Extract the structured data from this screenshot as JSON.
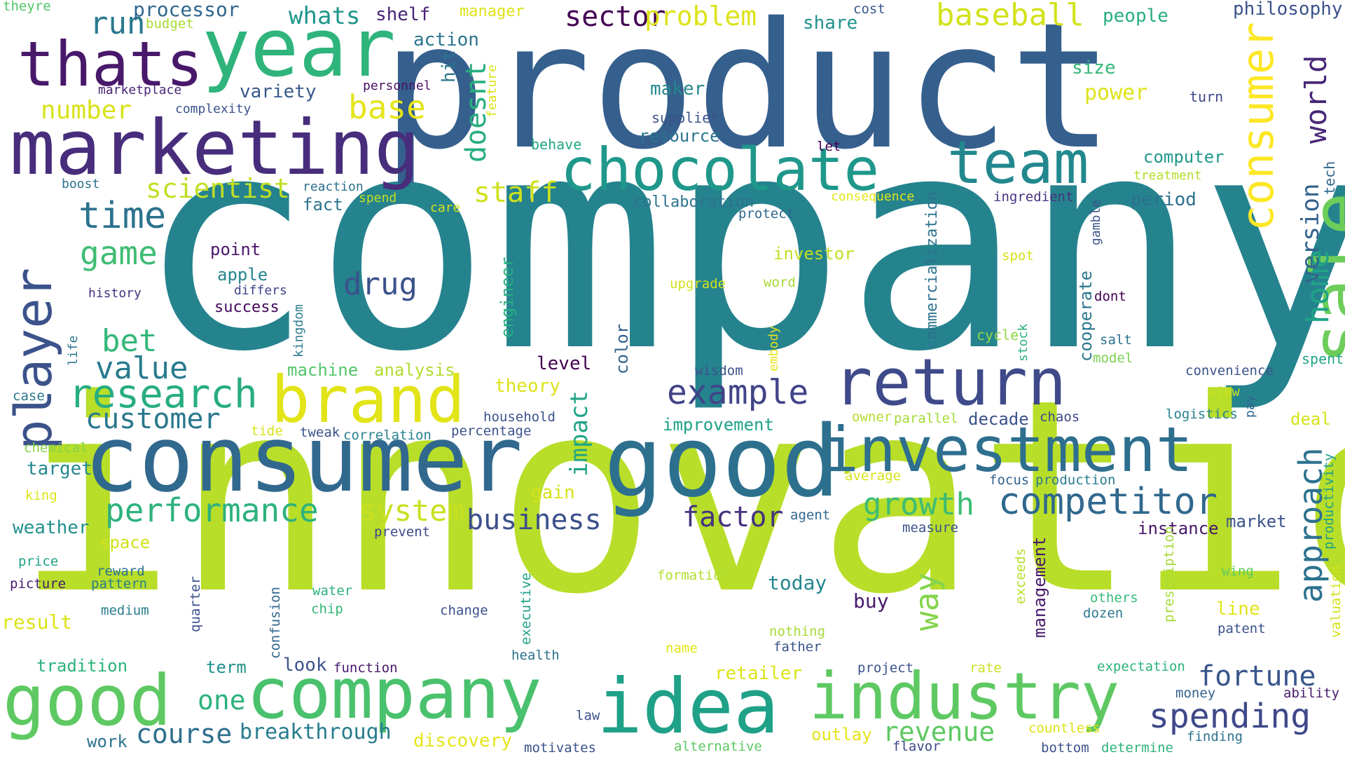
{
  "words": [
    {
      "text": "company",
      "color": "#25838e"
    },
    {
      "text": "innovation",
      "color": "#b8de29"
    },
    {
      "text": "product",
      "color": "#355f8d"
    },
    {
      "text": "consumer",
      "color": "#31688e"
    },
    {
      "text": "good",
      "color": "#2d708e"
    },
    {
      "text": "marketing",
      "color": "#472d7b"
    },
    {
      "text": "year",
      "color": "#2fb47c"
    },
    {
      "text": "thats",
      "color": "#48186a"
    },
    {
      "text": "company",
      "color": "#4ac16d"
    },
    {
      "text": "good",
      "color": "#5ec962"
    },
    {
      "text": "idea",
      "color": "#1fa187"
    },
    {
      "text": "industry",
      "color": "#5ec962"
    },
    {
      "text": "brand",
      "color": "#e2e418"
    },
    {
      "text": "return",
      "color": "#3e4a89"
    },
    {
      "text": "investment",
      "color": "#2e6e8e"
    },
    {
      "text": "chocolate",
      "color": "#1f988b"
    },
    {
      "text": "team",
      "color": "#23888e"
    },
    {
      "text": "sale",
      "color": "#6ccd5a"
    },
    {
      "text": "consumer",
      "color": "#fde725"
    },
    {
      "text": "player",
      "color": "#3b528b"
    },
    {
      "text": "research",
      "color": "#27ad81"
    },
    {
      "text": "competitor",
      "color": "#30688e"
    },
    {
      "text": "performance",
      "color": "#2db27d"
    },
    {
      "text": "customer",
      "color": "#2a788e"
    },
    {
      "text": "time",
      "color": "#2c728e"
    },
    {
      "text": "game",
      "color": "#3fbc73"
    },
    {
      "text": "value",
      "color": "#297b8e"
    },
    {
      "text": "bet",
      "color": "#35b779"
    },
    {
      "text": "example",
      "color": "#414487"
    },
    {
      "text": "spending",
      "color": "#3e4989"
    },
    {
      "text": "fortune",
      "color": "#39568c"
    },
    {
      "text": "growth",
      "color": "#3dbc74"
    },
    {
      "text": "business",
      "color": "#3c508b"
    },
    {
      "text": "factor",
      "color": "#46337f"
    },
    {
      "text": "system",
      "color": "#c8e020"
    },
    {
      "text": "approach",
      "color": "#2c728e"
    },
    {
      "text": "way",
      "color": "#84d44b"
    },
    {
      "text": "home",
      "color": "#20a386"
    },
    {
      "text": "world",
      "color": "#482878"
    },
    {
      "text": "version",
      "color": "#33638d"
    },
    {
      "text": "scientist",
      "color": "#c0df25"
    },
    {
      "text": "staff",
      "color": "#d0e11c"
    },
    {
      "text": "drug",
      "color": "#3b528b"
    },
    {
      "text": "number",
      "color": "#d8e219"
    },
    {
      "text": "base",
      "color": "#e5e419"
    },
    {
      "text": "run",
      "color": "#29798e"
    },
    {
      "text": "processor",
      "color": "#31678e"
    },
    {
      "text": "whats",
      "color": "#1f968b"
    },
    {
      "text": "shelf",
      "color": "#482475"
    },
    {
      "text": "sector",
      "color": "#440154"
    },
    {
      "text": "problem",
      "color": "#dde318"
    },
    {
      "text": "baseball",
      "color": "#d2e21b"
    },
    {
      "text": "people",
      "color": "#26ad81"
    },
    {
      "text": "philosophy",
      "color": "#3b528b"
    },
    {
      "text": "doesnt",
      "color": "#28ae80"
    },
    {
      "text": "revenue",
      "color": "#5ec962"
    },
    {
      "text": "course",
      "color": "#2e6e8e"
    },
    {
      "text": "breakthrough",
      "color": "#287d8e"
    },
    {
      "text": "one",
      "color": "#2db27d"
    },
    {
      "text": "impact",
      "color": "#20a486"
    },
    {
      "text": "today",
      "color": "#25858e"
    },
    {
      "text": "management",
      "color": "#481a6c"
    },
    {
      "text": "target",
      "color": "#23898e"
    },
    {
      "text": "gain",
      "color": "#d8e219"
    },
    {
      "text": "action",
      "color": "#2b758e"
    },
    {
      "text": "budget",
      "color": "#a8db34"
    },
    {
      "text": "theyre",
      "color": "#52c569"
    },
    {
      "text": "marketplace",
      "color": "#482677"
    },
    {
      "text": "complexity",
      "color": "#3b528b"
    },
    {
      "text": "variety",
      "color": "#38588c"
    },
    {
      "text": "personnel",
      "color": "#471164"
    },
    {
      "text": "hit",
      "color": "#2a768e"
    },
    {
      "text": "feature",
      "color": "#dde318"
    },
    {
      "text": "maker",
      "color": "#24878e"
    },
    {
      "text": "supplier",
      "color": "#3b528b"
    },
    {
      "text": "resource",
      "color": "#2b748e"
    },
    {
      "text": "behave",
      "color": "#22a785"
    },
    {
      "text": "manager",
      "color": "#dde318"
    },
    {
      "text": "share",
      "color": "#21918c"
    },
    {
      "text": "cost",
      "color": "#38588c"
    },
    {
      "text": "size",
      "color": "#35b779"
    },
    {
      "text": "power",
      "color": "#dde318"
    },
    {
      "text": "turn",
      "color": "#3e4989"
    },
    {
      "text": "computer",
      "color": "#1f988b"
    },
    {
      "text": "treatment",
      "color": "#b5de2b"
    },
    {
      "text": "tech",
      "color": "#31678e"
    },
    {
      "text": "period",
      "color": "#2d708e"
    },
    {
      "text": "ingredient",
      "color": "#46327e"
    },
    {
      "text": "gamble",
      "color": "#3b528b"
    },
    {
      "text": "collaboration",
      "color": "#2c728e"
    },
    {
      "text": "protect",
      "color": "#31678e"
    },
    {
      "text": "consequence",
      "color": "#e2e418"
    },
    {
      "text": "commercialization",
      "color": "#2c728e"
    },
    {
      "text": "let",
      "color": "#440154"
    },
    {
      "text": "spend",
      "color": "#c2df23"
    },
    {
      "text": "care",
      "color": "#d5e21a"
    },
    {
      "text": "reaction",
      "color": "#2d708e"
    },
    {
      "text": "fact",
      "color": "#2b748e"
    },
    {
      "text": "boost",
      "color": "#2d708e"
    },
    {
      "text": "point",
      "color": "#481769"
    },
    {
      "text": "apple",
      "color": "#25848e"
    },
    {
      "text": "differs",
      "color": "#404688"
    },
    {
      "text": "history",
      "color": "#46327e"
    },
    {
      "text": "success",
      "color": "#460b5e"
    },
    {
      "text": "kingdom",
      "color": "#287d8e"
    },
    {
      "text": "investor",
      "color": "#c2df23"
    },
    {
      "text": "upgrade",
      "color": "#d2e21b"
    },
    {
      "text": "word",
      "color": "#a5db36"
    },
    {
      "text": "spot",
      "color": "#d8e219"
    },
    {
      "text": "cooperate",
      "color": "#2a768e"
    },
    {
      "text": "dont",
      "color": "#440154"
    },
    {
      "text": "salt",
      "color": "#2c728e"
    },
    {
      "text": "model",
      "color": "#7ad151"
    },
    {
      "text": "spent",
      "color": "#21a585"
    },
    {
      "text": "engineer",
      "color": "#26ad81"
    },
    {
      "text": "color",
      "color": "#33638d"
    },
    {
      "text": "embody",
      "color": "#e5e419"
    },
    {
      "text": "cycle",
      "color": "#8fd744"
    },
    {
      "text": "stock",
      "color": "#2bb07f"
    },
    {
      "text": "level",
      "color": "#440154"
    },
    {
      "text": "wisdom",
      "color": "#3b528b"
    },
    {
      "text": "machine",
      "color": "#52c569"
    },
    {
      "text": "analysis",
      "color": "#b2dd2d"
    },
    {
      "text": "theory",
      "color": "#dde318"
    },
    {
      "text": "household",
      "color": "#3b528b"
    },
    {
      "text": "percentage",
      "color": "#3b528b"
    },
    {
      "text": "correlation",
      "color": "#26828e"
    },
    {
      "text": "tweak",
      "color": "#3b528b"
    },
    {
      "text": "tide",
      "color": "#d8e219"
    },
    {
      "text": "improvement",
      "color": "#1fa287"
    },
    {
      "text": "owner",
      "color": "#b5de2b"
    },
    {
      "text": "parallel",
      "color": "#a5db36"
    },
    {
      "text": "decade",
      "color": "#3b528b"
    },
    {
      "text": "chaos",
      "color": "#3e4a89"
    },
    {
      "text": "logistics",
      "color": "#26828e"
    },
    {
      "text": "pay",
      "color": "#31678e"
    },
    {
      "text": "deal",
      "color": "#d5e21a"
    },
    {
      "text": "convenience",
      "color": "#3b528b"
    },
    {
      "text": "view",
      "color": "#cae11f"
    },
    {
      "text": "average",
      "color": "#d8e219"
    },
    {
      "text": "focus",
      "color": "#33638d"
    },
    {
      "text": "production",
      "color": "#287c8e"
    },
    {
      "text": "productivity",
      "color": "#1fa187"
    },
    {
      "text": "market",
      "color": "#3b528b"
    },
    {
      "text": "instance",
      "color": "#481769"
    },
    {
      "text": "agent",
      "color": "#31678e"
    },
    {
      "text": "measure",
      "color": "#3b528b"
    },
    {
      "text": "prevent",
      "color": "#3e4989"
    },
    {
      "text": "life",
      "color": "#2b748e"
    },
    {
      "text": "case",
      "color": "#2a788e"
    },
    {
      "text": "chemical",
      "color": "#84d44b"
    },
    {
      "text": "king",
      "color": "#dde318"
    },
    {
      "text": "weather",
      "color": "#21918c"
    },
    {
      "text": "space",
      "color": "#d0e11c"
    },
    {
      "text": "price",
      "color": "#1fa287"
    },
    {
      "text": "reward",
      "color": "#2c728e"
    },
    {
      "text": "picture",
      "color": "#481a6c"
    },
    {
      "text": "pattern",
      "color": "#287d8e"
    },
    {
      "text": "result",
      "color": "#dde318"
    },
    {
      "text": "medium",
      "color": "#287d8e"
    },
    {
      "text": "quarter",
      "color": "#3b528b"
    },
    {
      "text": "confusion",
      "color": "#31678e"
    },
    {
      "text": "water",
      "color": "#2db27d"
    },
    {
      "text": "chip",
      "color": "#35b779"
    },
    {
      "text": "change",
      "color": "#3b528b"
    },
    {
      "text": "executive",
      "color": "#1fa187"
    },
    {
      "text": "formation",
      "color": "#b2dd2d"
    },
    {
      "text": "nothing",
      "color": "#a5db36"
    },
    {
      "text": "father",
      "color": "#3b528b"
    },
    {
      "text": "name",
      "color": "#e5e419"
    },
    {
      "text": "health",
      "color": "#2c728e"
    },
    {
      "text": "buy",
      "color": "#481a6c"
    },
    {
      "text": "exceeds",
      "color": "#b8de29"
    },
    {
      "text": "prescription",
      "color": "#a5db36"
    },
    {
      "text": "others",
      "color": "#38b977"
    },
    {
      "text": "dozen",
      "color": "#2a788e"
    },
    {
      "text": "line",
      "color": "#e2e418"
    },
    {
      "text": "patent",
      "color": "#3b528b"
    },
    {
      "text": "wing",
      "color": "#5ec962"
    },
    {
      "text": "valuation",
      "color": "#d2e21b"
    },
    {
      "text": "tradition",
      "color": "#2db27d"
    },
    {
      "text": "term",
      "color": "#21918c"
    },
    {
      "text": "look",
      "color": "#3b528b"
    },
    {
      "text": "function",
      "color": "#481769"
    },
    {
      "text": "retailer",
      "color": "#dde318"
    },
    {
      "text": "project",
      "color": "#3b528b"
    },
    {
      "text": "rate",
      "color": "#cae11f"
    },
    {
      "text": "expectation",
      "color": "#2db27d"
    },
    {
      "text": "money",
      "color": "#33638d"
    },
    {
      "text": "ability",
      "color": "#481a6c"
    },
    {
      "text": "work",
      "color": "#2c728e"
    },
    {
      "text": "discovery",
      "color": "#e5e419"
    },
    {
      "text": "law",
      "color": "#3b528b"
    },
    {
      "text": "motivates",
      "color": "#3b528b"
    },
    {
      "text": "alternative",
      "color": "#5ec962"
    },
    {
      "text": "flavor",
      "color": "#3e4989"
    },
    {
      "text": "outlay",
      "color": "#e5e419"
    },
    {
      "text": "countless",
      "color": "#dde318"
    },
    {
      "text": "bottom",
      "color": "#3b528b"
    },
    {
      "text": "determine",
      "color": "#2db27d"
    },
    {
      "text": "finding",
      "color": "#2c728e"
    }
  ]
}
